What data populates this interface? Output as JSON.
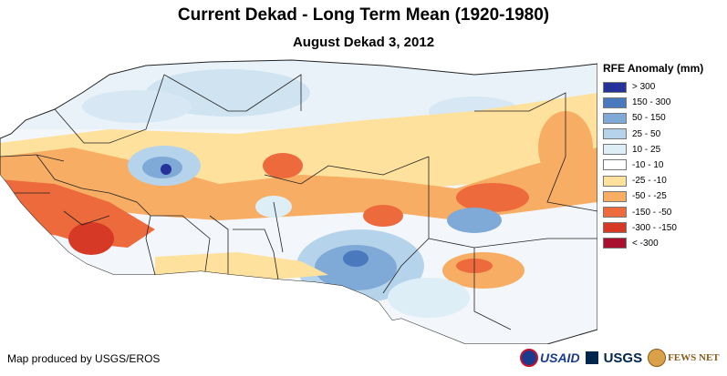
{
  "header": {
    "title": "Current Dekad - Long Term Mean (1920-1980)",
    "subtitle": "August Dekad 3, 2012"
  },
  "legend": {
    "title": "RFE Anomaly (mm)",
    "items": [
      {
        "label": "> 300",
        "color": "#24329a"
      },
      {
        "label": "150 - 300",
        "color": "#4a79bd"
      },
      {
        "label": "50 - 150",
        "color": "#7fa9d6"
      },
      {
        "label": "25 - 50",
        "color": "#b5d3ea"
      },
      {
        "label": "10 - 25",
        "color": "#ddeef7"
      },
      {
        "label": "-10 - 10",
        "color": "#ffffff"
      },
      {
        "label": "-25 - -10",
        "color": "#fde19c"
      },
      {
        "label": "-50 - -25",
        "color": "#f8ad64"
      },
      {
        "label": "-150 - -50",
        "color": "#ed6a3d"
      },
      {
        "label": "-300 - -150",
        "color": "#d63a26"
      },
      {
        "label": "< -300",
        "color": "#a8102d"
      }
    ]
  },
  "footer": {
    "credit": "Map produced by USGS/EROS",
    "logos": {
      "usaid": "USAID",
      "usgs": "USGS",
      "fews": "FEWS NET"
    }
  },
  "colors": {
    "background": "#ffffff",
    "border_lines": "#222222"
  }
}
